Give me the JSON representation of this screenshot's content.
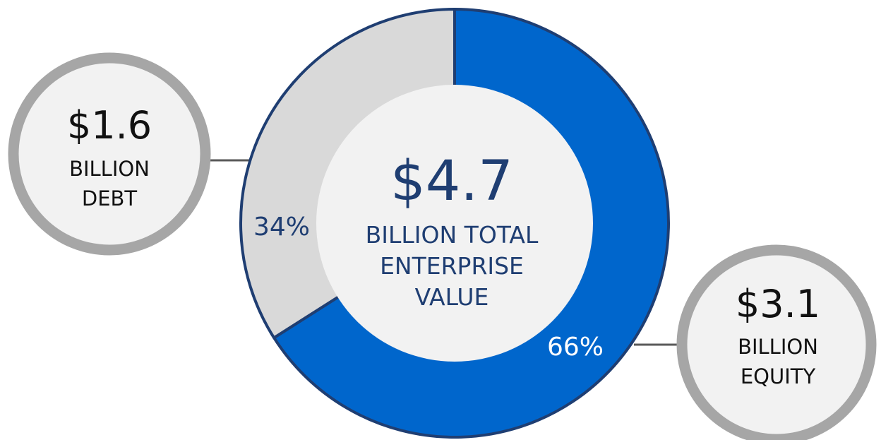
{
  "chart_data": {
    "type": "pie",
    "center": {
      "value": "$4.7",
      "lines": [
        "BILLION TOTAL",
        "ENTERPRISE",
        "VALUE"
      ]
    },
    "series": [
      {
        "label": "DEBT",
        "value": 34,
        "value_label": "34%",
        "amount": "$1.6",
        "callout_lines": [
          "BILLION",
          "DEBT"
        ],
        "color": "#d9d9d9"
      },
      {
        "label": "EQUITY",
        "value": 66,
        "value_label": "66%",
        "amount": "$3.1",
        "callout_lines": [
          "BILLION",
          "EQUITY"
        ],
        "color": "#0066cc"
      }
    ],
    "colors": {
      "navy": "#1f3e72",
      "text": "#111111",
      "inner": "#f2f2f2",
      "ring": "#a6a6a6",
      "connector": "#595959"
    }
  }
}
